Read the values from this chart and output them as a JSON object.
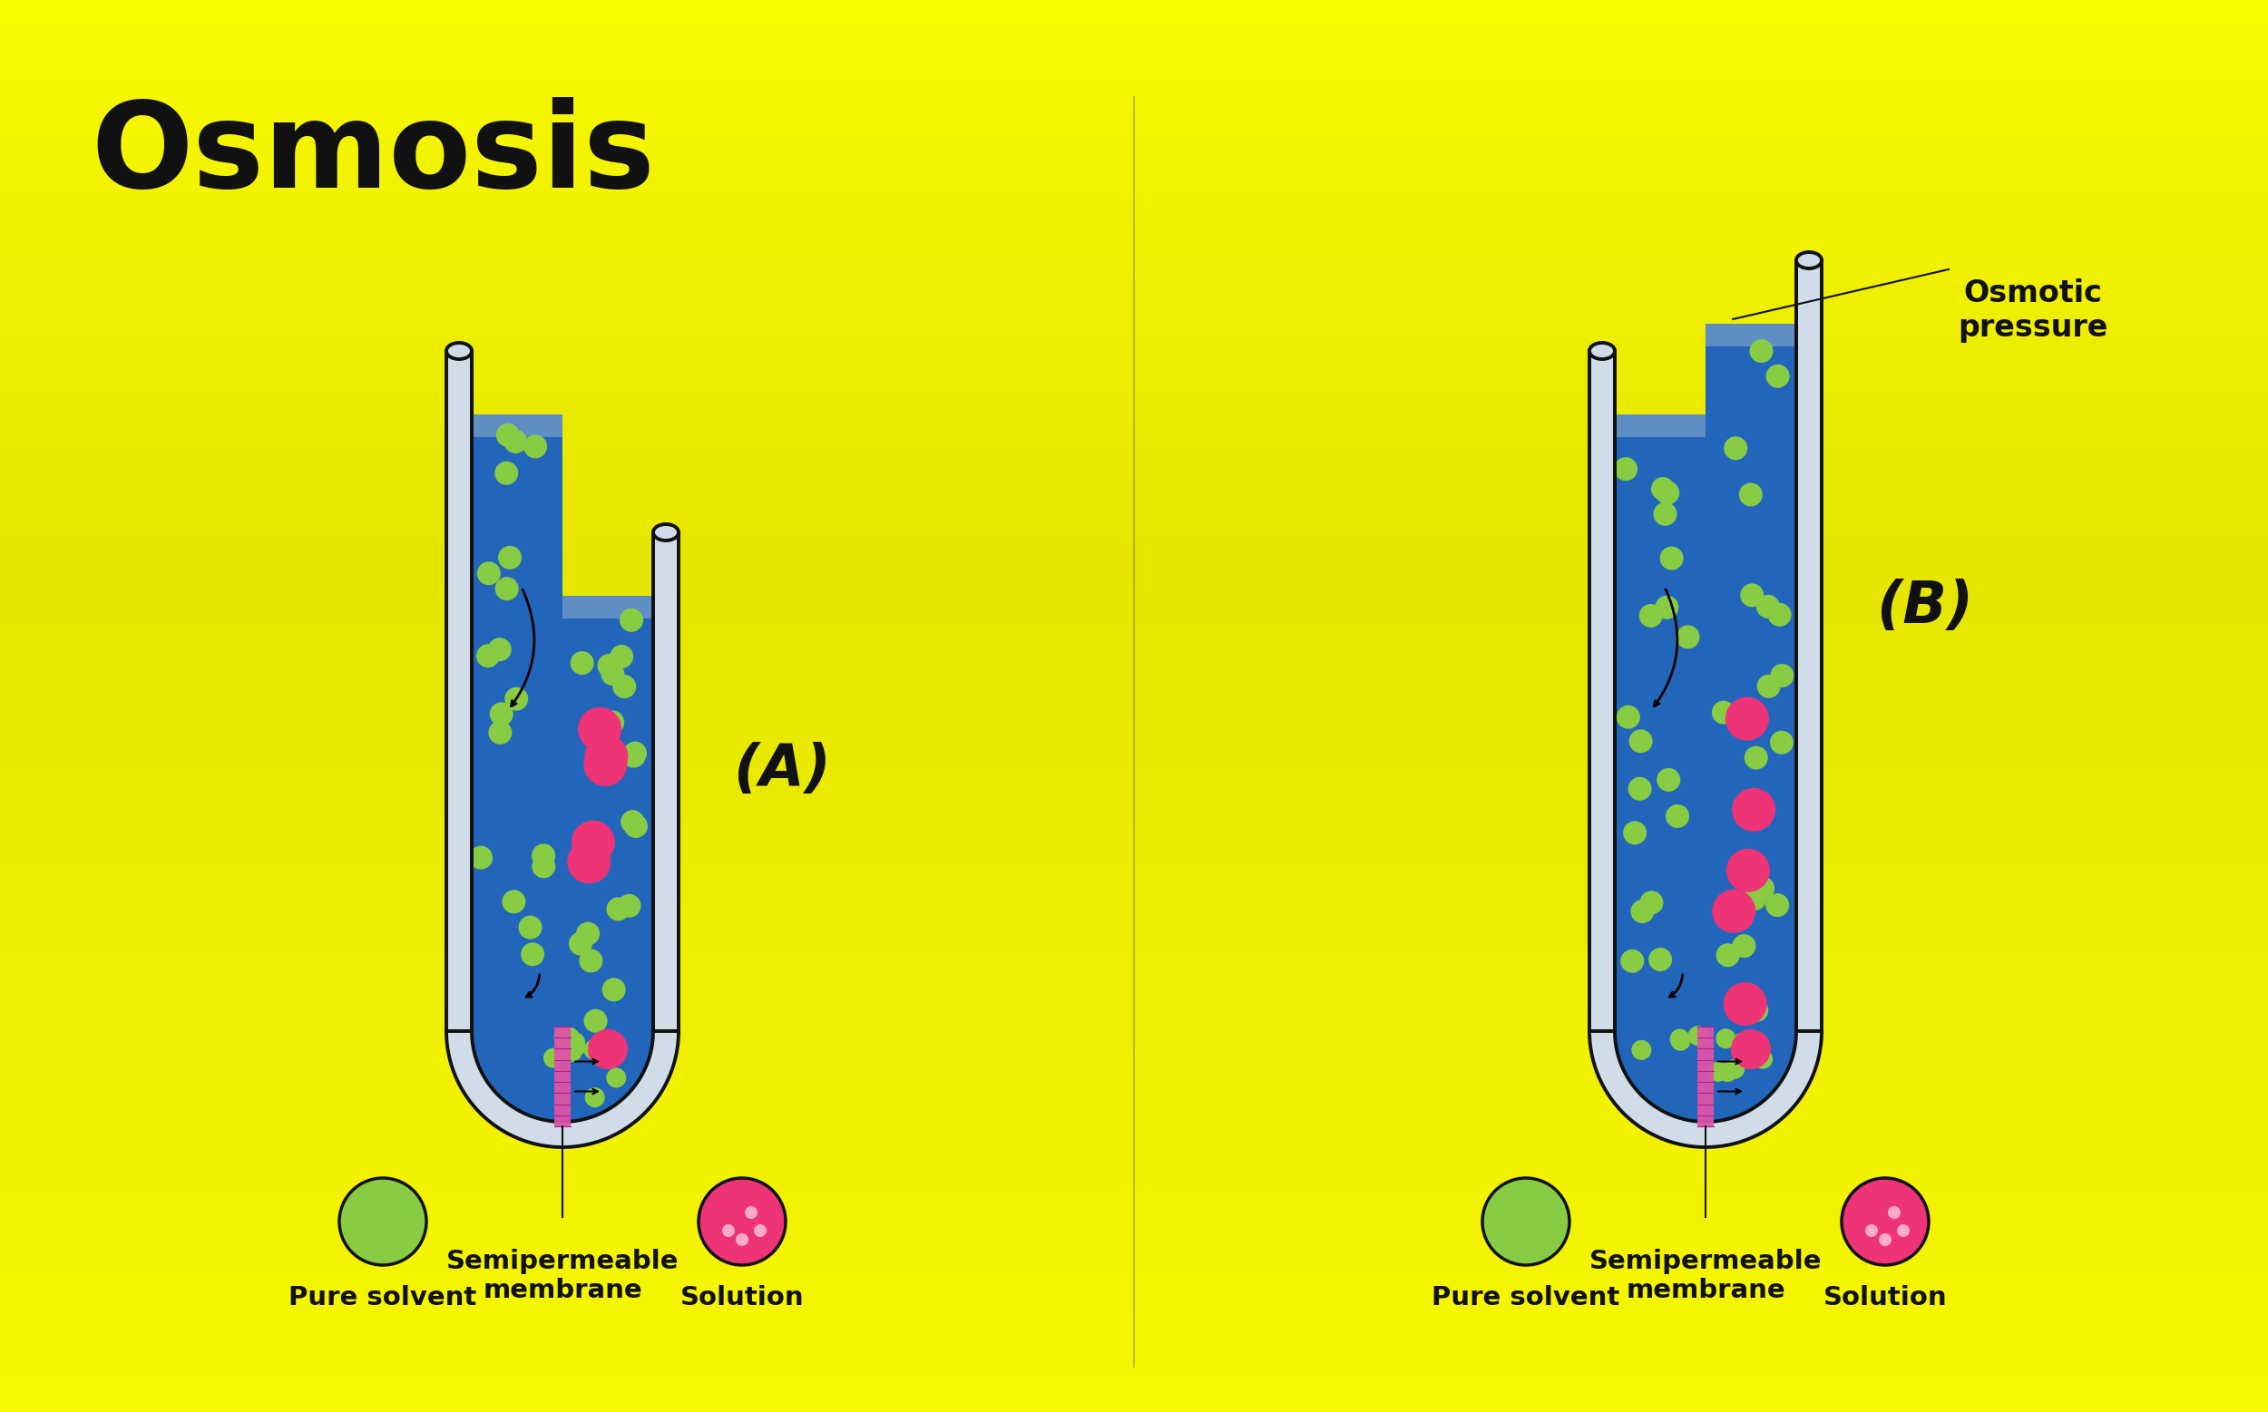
{
  "title": "Osmosis",
  "bg_color_top": "#e8e800",
  "bg_color": "#cccc00",
  "bg_gradient_top": "#f0f000",
  "bg_gradient_bottom": "#aaaa00",
  "tube_fill_color": "#4488cc",
  "tube_water_light": "#aaccee",
  "tube_glass_color": "#d8e8f0",
  "tube_outline_color": "#111111",
  "membrane_color": "#cc66aa",
  "solvent_circle_color": "#88cc44",
  "solution_circle_color": "#ee3377",
  "small_dot_color": "#88cc44",
  "large_dot_color": "#ee3377",
  "label_A": "(A)",
  "label_B": "(B)",
  "pure_solvent_label": "Pure solvent",
  "solution_label": "Solution",
  "semipermeable_label": "Semipermeable\nmembrane",
  "osmotic_pressure_label": "Osmotic\npressure",
  "font_color": "#111111"
}
